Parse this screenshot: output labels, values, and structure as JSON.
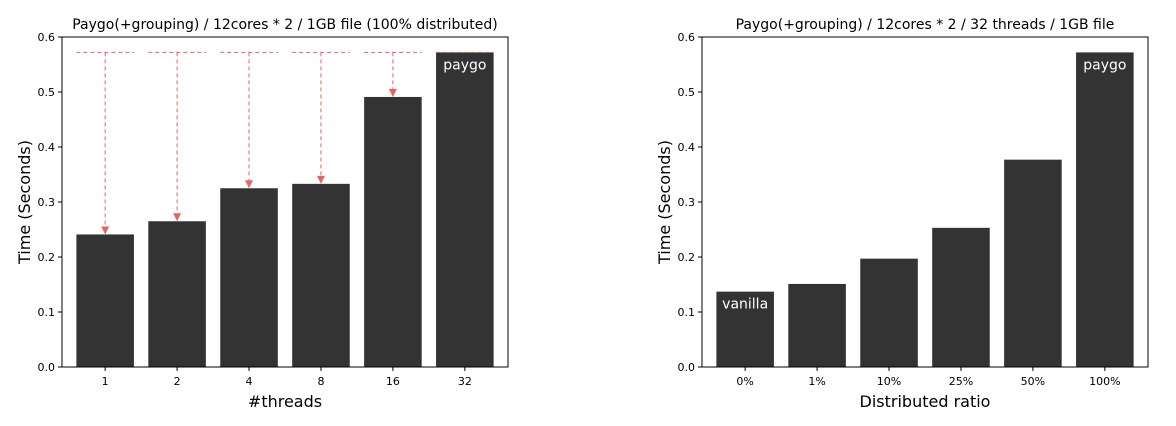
{
  "chart_data": [
    {
      "type": "bar",
      "title": "Paygo(+grouping) / 12cores * 2 / 1GB file (100% distributed)",
      "xlabel": "#threads",
      "ylabel": "Time (Seconds)",
      "categories": [
        "1",
        "2",
        "4",
        "8",
        "16",
        "32"
      ],
      "values": [
        0.241,
        0.265,
        0.325,
        0.333,
        0.491,
        0.572
      ],
      "ylim": [
        0,
        0.6
      ],
      "yticks": [
        "0.0",
        "0.1",
        "0.2",
        "0.3",
        "0.4",
        "0.5",
        "0.6"
      ],
      "bar_color": "#333333",
      "bar_labels": [
        {
          "index": 5,
          "text": "paygo"
        }
      ],
      "reference_arrows": {
        "from_value": 0.572,
        "to_categories": [
          0,
          1,
          2,
          3,
          4
        ],
        "color": "#e8635f",
        "style": "dashed"
      }
    },
    {
      "type": "bar",
      "title": "Paygo(+grouping) / 12cores * 2 / 32 threads / 1GB file",
      "xlabel": "Distributed ratio",
      "ylabel": "Time (Seconds)",
      "categories": [
        "0%",
        "1%",
        "10%",
        "25%",
        "50%",
        "100%"
      ],
      "values": [
        0.137,
        0.151,
        0.197,
        0.253,
        0.377,
        0.572
      ],
      "ylim": [
        0,
        0.6
      ],
      "yticks": [
        "0.0",
        "0.1",
        "0.2",
        "0.3",
        "0.4",
        "0.5",
        "0.6"
      ],
      "bar_color": "#333333",
      "bar_labels": [
        {
          "index": 0,
          "text": "vanilla"
        },
        {
          "index": 5,
          "text": "paygo"
        }
      ]
    }
  ]
}
